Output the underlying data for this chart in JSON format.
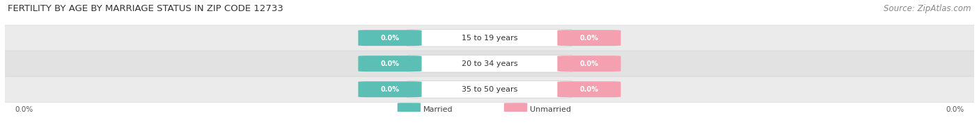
{
  "title": "FERTILITY BY AGE BY MARRIAGE STATUS IN ZIP CODE 12733",
  "source": "Source: ZipAtlas.com",
  "categories": [
    "15 to 19 years",
    "20 to 34 years",
    "35 to 50 years"
  ],
  "married_values": [
    0.0,
    0.0,
    0.0
  ],
  "unmarried_values": [
    0.0,
    0.0,
    0.0
  ],
  "married_color": "#5BBFB5",
  "unmarried_color": "#F4A0B0",
  "row_bg_color": "#EBEBEB",
  "row_bg_color2": "#E2E2E2",
  "title_fontsize": 9.5,
  "source_fontsize": 8.5,
  "label_fontsize": 8,
  "value_fontsize": 7,
  "background_color": "#FFFFFF"
}
